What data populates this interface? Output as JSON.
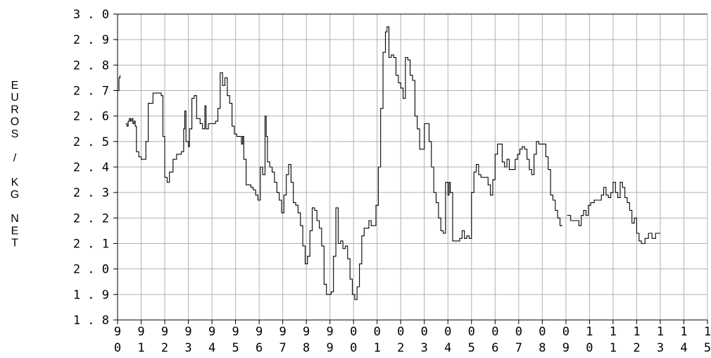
{
  "chart_data": {
    "type": "line",
    "title": "",
    "xlabel": "",
    "ylabel_lines": [
      "E",
      "U",
      "R",
      "O",
      "S",
      "",
      "/",
      "",
      "K",
      "G",
      "",
      "N",
      "E",
      "T"
    ],
    "ylim": [
      1.8,
      3.0
    ],
    "y_ticks": [
      {
        "value": 3.0,
        "label": "3 . 0"
      },
      {
        "value": 2.9,
        "label": "2 . 9"
      },
      {
        "value": 2.8,
        "label": "2 . 8"
      },
      {
        "value": 2.7,
        "label": "2 . 7"
      },
      {
        "value": 2.6,
        "label": "2 . 6"
      },
      {
        "value": 2.5,
        "label": "2 . 5"
      },
      {
        "value": 2.4,
        "label": "2 . 4"
      },
      {
        "value": 2.3,
        "label": "2 . 3"
      },
      {
        "value": 2.2,
        "label": "2 . 2"
      },
      {
        "value": 2.1,
        "label": "2 . 1"
      },
      {
        "value": 2.0,
        "label": "2 . 0"
      },
      {
        "value": 1.9,
        "label": "1 . 9"
      },
      {
        "value": 1.8,
        "label": "1 . 8"
      }
    ],
    "xlim": [
      1990,
      2015
    ],
    "x_ticks": [
      {
        "value": 1990,
        "top": "9",
        "bottom": "0"
      },
      {
        "value": 1991,
        "top": "9",
        "bottom": "1"
      },
      {
        "value": 1992,
        "top": "9",
        "bottom": "2"
      },
      {
        "value": 1993,
        "top": "9",
        "bottom": "3"
      },
      {
        "value": 1994,
        "top": "9",
        "bottom": "4"
      },
      {
        "value": 1995,
        "top": "9",
        "bottom": "5"
      },
      {
        "value": 1996,
        "top": "9",
        "bottom": "6"
      },
      {
        "value": 1997,
        "top": "9",
        "bottom": "7"
      },
      {
        "value": 1998,
        "top": "9",
        "bottom": "8"
      },
      {
        "value": 1999,
        "top": "9",
        "bottom": "9"
      },
      {
        "value": 2000,
        "top": "0",
        "bottom": "0"
      },
      {
        "value": 2001,
        "top": "0",
        "bottom": "1"
      },
      {
        "value": 2002,
        "top": "0",
        "bottom": "2"
      },
      {
        "value": 2003,
        "top": "0",
        "bottom": "3"
      },
      {
        "value": 2004,
        "top": "0",
        "bottom": "4"
      },
      {
        "value": 2005,
        "top": "0",
        "bottom": "5"
      },
      {
        "value": 2006,
        "top": "0",
        "bottom": "6"
      },
      {
        "value": 2007,
        "top": "0",
        "bottom": "7"
      },
      {
        "value": 2008,
        "top": "0",
        "bottom": "8"
      },
      {
        "value": 2009,
        "top": "0",
        "bottom": "9"
      },
      {
        "value": 2010,
        "top": "1",
        "bottom": "0"
      },
      {
        "value": 2011,
        "top": "1",
        "bottom": "1"
      },
      {
        "value": 2012,
        "top": "1",
        "bottom": "2"
      },
      {
        "value": 2013,
        "top": "1",
        "bottom": "3"
      },
      {
        "value": 2014,
        "top": "1",
        "bottom": "4"
      },
      {
        "value": 2015,
        "top": "1",
        "bottom": "5"
      }
    ],
    "grid": true,
    "line_color": "#000000",
    "grid_color": "#b0b0b0",
    "series": [
      {
        "segments": [
          [
            [
              1990.02,
              2.7
            ],
            [
              1990.06,
              2.75
            ],
            [
              1990.1,
              2.76
            ]
          ],
          [
            [
              1990.35,
              2.57
            ],
            [
              1990.4,
              2.56
            ],
            [
              1990.45,
              2.58
            ],
            [
              1990.5,
              2.59
            ],
            [
              1990.55,
              2.58
            ],
            [
              1990.6,
              2.59
            ],
            [
              1990.65,
              2.57
            ],
            [
              1990.7,
              2.58
            ],
            [
              1990.75,
              2.56
            ],
            [
              1990.8,
              2.46
            ],
            [
              1990.9,
              2.44
            ],
            [
              1991.0,
              2.43
            ],
            [
              1991.1,
              2.43
            ],
            [
              1991.2,
              2.5
            ],
            [
              1991.3,
              2.65
            ],
            [
              1991.4,
              2.65
            ],
            [
              1991.5,
              2.69
            ],
            [
              1991.7,
              2.69
            ],
            [
              1991.85,
              2.68
            ],
            [
              1991.92,
              2.52
            ],
            [
              1992.0,
              2.36
            ],
            [
              1992.1,
              2.34
            ],
            [
              1992.2,
              2.38
            ],
            [
              1992.35,
              2.43
            ],
            [
              1992.5,
              2.45
            ],
            [
              1992.7,
              2.46
            ],
            [
              1992.8,
              2.55
            ],
            [
              1992.85,
              2.62
            ],
            [
              1992.9,
              2.5
            ],
            [
              1993.0,
              2.48
            ],
            [
              1993.05,
              2.55
            ],
            [
              1993.15,
              2.67
            ],
            [
              1993.25,
              2.68
            ],
            [
              1993.35,
              2.59
            ],
            [
              1993.5,
              2.57
            ],
            [
              1993.6,
              2.55
            ],
            [
              1993.7,
              2.64
            ],
            [
              1993.75,
              2.55
            ],
            [
              1993.85,
              2.57
            ],
            [
              1994.0,
              2.57
            ],
            [
              1994.15,
              2.58
            ],
            [
              1994.25,
              2.63
            ],
            [
              1994.35,
              2.77
            ],
            [
              1994.45,
              2.72
            ],
            [
              1994.55,
              2.75
            ],
            [
              1994.65,
              2.68
            ],
            [
              1994.75,
              2.65
            ],
            [
              1994.85,
              2.56
            ],
            [
              1994.95,
              2.53
            ],
            [
              1995.05,
              2.52
            ],
            [
              1995.15,
              2.52
            ],
            [
              1995.25,
              2.49
            ],
            [
              1995.3,
              2.52
            ],
            [
              1995.35,
              2.43
            ],
            [
              1995.45,
              2.33
            ],
            [
              1995.55,
              2.33
            ],
            [
              1995.65,
              2.32
            ],
            [
              1995.75,
              2.31
            ],
            [
              1995.85,
              2.29
            ],
            [
              1995.95,
              2.27
            ],
            [
              1996.05,
              2.4
            ],
            [
              1996.15,
              2.37
            ],
            [
              1996.25,
              2.6
            ],
            [
              1996.3,
              2.52
            ],
            [
              1996.35,
              2.42
            ],
            [
              1996.45,
              2.4
            ],
            [
              1996.55,
              2.38
            ],
            [
              1996.65,
              2.34
            ],
            [
              1996.75,
              2.3
            ],
            [
              1996.85,
              2.27
            ],
            [
              1996.95,
              2.22
            ],
            [
              1997.05,
              2.29
            ],
            [
              1997.15,
              2.37
            ],
            [
              1997.25,
              2.41
            ],
            [
              1997.35,
              2.34
            ],
            [
              1997.45,
              2.26
            ],
            [
              1997.55,
              2.25
            ],
            [
              1997.65,
              2.22
            ],
            [
              1997.75,
              2.17
            ],
            [
              1997.85,
              2.09
            ],
            [
              1997.95,
              2.02
            ],
            [
              1998.05,
              2.05
            ],
            [
              1998.15,
              2.15
            ],
            [
              1998.25,
              2.24
            ],
            [
              1998.35,
              2.23
            ],
            [
              1998.45,
              2.19
            ],
            [
              1998.55,
              2.16
            ],
            [
              1998.65,
              2.09
            ],
            [
              1998.75,
              1.94
            ],
            [
              1998.85,
              1.9
            ],
            [
              1998.95,
              1.9
            ],
            [
              1999.05,
              1.91
            ],
            [
              1999.15,
              2.05
            ],
            [
              1999.25,
              2.24
            ],
            [
              1999.35,
              2.1
            ],
            [
              1999.45,
              2.11
            ],
            [
              1999.55,
              2.08
            ],
            [
              1999.65,
              2.09
            ],
            [
              1999.75,
              2.04
            ],
            [
              1999.85,
              1.96
            ],
            [
              1999.95,
              1.9
            ],
            [
              2000.05,
              1.88
            ],
            [
              2000.15,
              1.93
            ],
            [
              2000.25,
              2.02
            ],
            [
              2000.35,
              2.13
            ],
            [
              2000.45,
              2.16
            ],
            [
              2000.55,
              2.16
            ],
            [
              2000.65,
              2.19
            ],
            [
              2000.75,
              2.17
            ],
            [
              2000.85,
              2.17
            ],
            [
              2000.95,
              2.25
            ],
            [
              2001.05,
              2.4
            ],
            [
              2001.15,
              2.63
            ],
            [
              2001.25,
              2.85
            ],
            [
              2001.35,
              2.93
            ],
            [
              2001.42,
              2.95
            ],
            [
              2001.5,
              2.83
            ],
            [
              2001.6,
              2.84
            ],
            [
              2001.7,
              2.83
            ],
            [
              2001.8,
              2.76
            ],
            [
              2001.9,
              2.73
            ],
            [
              2002.0,
              2.71
            ],
            [
              2002.1,
              2.67
            ],
            [
              2002.2,
              2.83
            ],
            [
              2002.3,
              2.82
            ],
            [
              2002.4,
              2.76
            ],
            [
              2002.5,
              2.74
            ],
            [
              2002.6,
              2.6
            ],
            [
              2002.7,
              2.55
            ],
            [
              2002.8,
              2.47
            ],
            [
              2002.9,
              2.47
            ],
            [
              2003.0,
              2.57
            ],
            [
              2003.1,
              2.57
            ],
            [
              2003.2,
              2.5
            ],
            [
              2003.3,
              2.4
            ],
            [
              2003.4,
              2.3
            ],
            [
              2003.5,
              2.26
            ],
            [
              2003.6,
              2.2
            ],
            [
              2003.7,
              2.15
            ],
            [
              2003.8,
              2.14
            ],
            [
              2003.9,
              2.34
            ],
            [
              2004.0,
              2.29
            ],
            [
              2004.05,
              2.34
            ],
            [
              2004.1,
              2.3
            ],
            [
              2004.2,
              2.11
            ],
            [
              2004.35,
              2.11
            ],
            [
              2004.5,
              2.12
            ],
            [
              2004.6,
              2.15
            ],
            [
              2004.7,
              2.12
            ],
            [
              2004.8,
              2.13
            ],
            [
              2004.9,
              2.12
            ],
            [
              2005.0,
              2.3
            ],
            [
              2005.1,
              2.38
            ],
            [
              2005.2,
              2.41
            ],
            [
              2005.3,
              2.37
            ],
            [
              2005.4,
              2.36
            ],
            [
              2005.55,
              2.36
            ],
            [
              2005.7,
              2.33
            ],
            [
              2005.8,
              2.29
            ],
            [
              2005.9,
              2.35
            ],
            [
              2006.0,
              2.45
            ],
            [
              2006.1,
              2.49
            ],
            [
              2006.2,
              2.49
            ],
            [
              2006.3,
              2.42
            ],
            [
              2006.4,
              2.4
            ],
            [
              2006.5,
              2.43
            ],
            [
              2006.6,
              2.39
            ],
            [
              2006.75,
              2.39
            ],
            [
              2006.85,
              2.43
            ],
            [
              2006.95,
              2.45
            ],
            [
              2007.05,
              2.47
            ],
            [
              2007.15,
              2.48
            ],
            [
              2007.25,
              2.47
            ],
            [
              2007.35,
              2.43
            ],
            [
              2007.45,
              2.39
            ],
            [
              2007.55,
              2.37
            ],
            [
              2007.65,
              2.45
            ],
            [
              2007.75,
              2.5
            ],
            [
              2007.85,
              2.49
            ],
            [
              2007.95,
              2.49
            ],
            [
              2008.05,
              2.49
            ],
            [
              2008.15,
              2.44
            ],
            [
              2008.25,
              2.39
            ],
            [
              2008.35,
              2.29
            ],
            [
              2008.45,
              2.27
            ],
            [
              2008.55,
              2.23
            ],
            [
              2008.65,
              2.2
            ],
            [
              2008.75,
              2.17
            ],
            [
              2008.85,
              2.17
            ]
          ],
          [
            [
              2009.05,
              2.21
            ],
            [
              2009.2,
              2.19
            ],
            [
              2009.4,
              2.19
            ],
            [
              2009.55,
              2.17
            ],
            [
              2009.65,
              2.21
            ],
            [
              2009.75,
              2.23
            ],
            [
              2009.85,
              2.21
            ],
            [
              2009.95,
              2.25
            ],
            [
              2010.05,
              2.26
            ],
            [
              2010.2,
              2.27
            ],
            [
              2010.35,
              2.27
            ],
            [
              2010.5,
              2.29
            ],
            [
              2010.6,
              2.32
            ],
            [
              2010.7,
              2.29
            ],
            [
              2010.8,
              2.28
            ],
            [
              2010.9,
              2.3
            ],
            [
              2011.0,
              2.34
            ],
            [
              2011.1,
              2.3
            ],
            [
              2011.2,
              2.28
            ],
            [
              2011.3,
              2.34
            ],
            [
              2011.4,
              2.32
            ],
            [
              2011.5,
              2.28
            ],
            [
              2011.6,
              2.26
            ],
            [
              2011.7,
              2.23
            ],
            [
              2011.8,
              2.18
            ],
            [
              2011.9,
              2.2
            ],
            [
              2012.0,
              2.14
            ],
            [
              2012.1,
              2.11
            ],
            [
              2012.2,
              2.1
            ],
            [
              2012.35,
              2.12
            ],
            [
              2012.5,
              2.14
            ],
            [
              2012.65,
              2.12
            ],
            [
              2012.8,
              2.14
            ],
            [
              2012.95,
              2.14
            ],
            [
              2013.0,
              2.14
            ]
          ]
        ]
      }
    ]
  }
}
